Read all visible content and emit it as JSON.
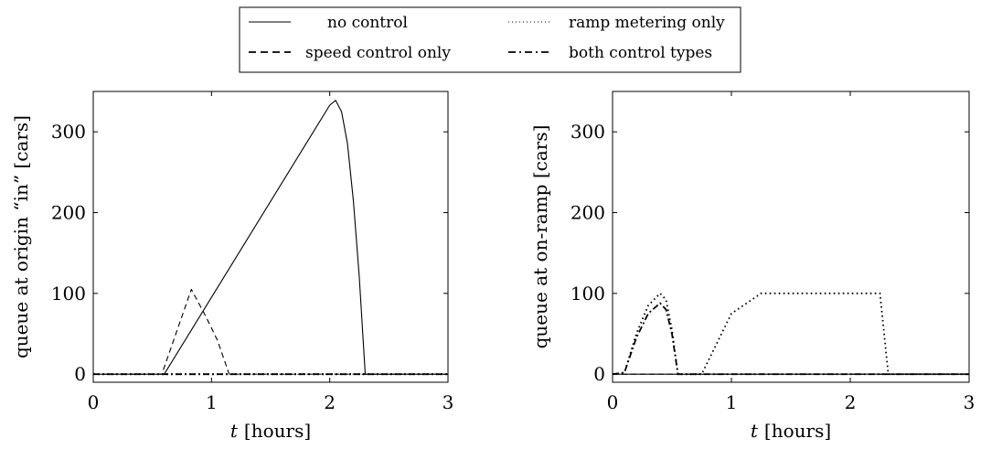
{
  "chart_data": [
    {
      "type": "line",
      "xlabel": {
        "var": "t",
        "unit": "[hours]"
      },
      "ylabel": "queue at origin “in” [cars]",
      "xlim": [
        0,
        3
      ],
      "ylim": [
        -10,
        350
      ],
      "xticks": [
        0,
        1,
        2,
        3
      ],
      "yticks": [
        0,
        100,
        200,
        300
      ],
      "grid": false,
      "series": [
        {
          "name": "no control",
          "style": "solid",
          "x": [
            0,
            0.6,
            2.0,
            2.05,
            2.1,
            2.15,
            2.2,
            2.25,
            2.3,
            3
          ],
          "y": [
            0,
            0,
            333,
            339,
            325,
            285,
            215,
            120,
            0,
            0
          ]
        },
        {
          "name": "speed control only",
          "style": "dashed",
          "x": [
            0,
            0.58,
            0.83,
            0.95,
            1.05,
            1.15,
            3
          ],
          "y": [
            0,
            0,
            105,
            72,
            42,
            0,
            0
          ]
        },
        {
          "name": "ramp metering only",
          "style": "dotted",
          "x": [
            0,
            3
          ],
          "y": [
            0,
            0
          ]
        },
        {
          "name": "both control types",
          "style": "dashdot",
          "x": [
            0,
            3
          ],
          "y": [
            0,
            0
          ]
        }
      ]
    },
    {
      "type": "line",
      "xlabel": {
        "var": "t",
        "unit": "[hours]"
      },
      "ylabel": "queue at on-ramp [cars]",
      "xlim": [
        0,
        3
      ],
      "ylim": [
        -10,
        350
      ],
      "xticks": [
        0,
        1,
        2,
        3
      ],
      "yticks": [
        0,
        100,
        200,
        300
      ],
      "grid": false,
      "series": [
        {
          "name": "no control",
          "style": "solid",
          "x": [
            0,
            3
          ],
          "y": [
            0,
            0
          ]
        },
        {
          "name": "speed control only",
          "style": "dashed",
          "x": [
            0,
            3
          ],
          "y": [
            0,
            0
          ]
        },
        {
          "name": "ramp metering only",
          "style": "dotted",
          "x": [
            0,
            0.1,
            0.2,
            0.3,
            0.4,
            0.45,
            0.5,
            0.55,
            0.75,
            0.85,
            1.0,
            1.25,
            2.25,
            2.32,
            3
          ],
          "y": [
            0,
            2,
            50,
            85,
            100,
            92,
            55,
            0,
            0,
            30,
            75,
            100,
            100,
            0,
            0
          ]
        },
        {
          "name": "both control types",
          "style": "dashdot",
          "x": [
            0,
            0.1,
            0.2,
            0.3,
            0.4,
            0.45,
            0.5,
            0.55,
            3
          ],
          "y": [
            0,
            2,
            45,
            75,
            88,
            80,
            50,
            0,
            0
          ]
        }
      ]
    }
  ],
  "legend": {
    "placement": "top-center",
    "entries": [
      {
        "label": "no control",
        "style": "solid"
      },
      {
        "label": "ramp metering only",
        "style": "dotted"
      },
      {
        "label": "speed control only",
        "style": "dashed"
      },
      {
        "label": "both control types",
        "style": "dashdot"
      }
    ]
  },
  "colors": {
    "line": "#000000",
    "background": "#ffffff"
  }
}
